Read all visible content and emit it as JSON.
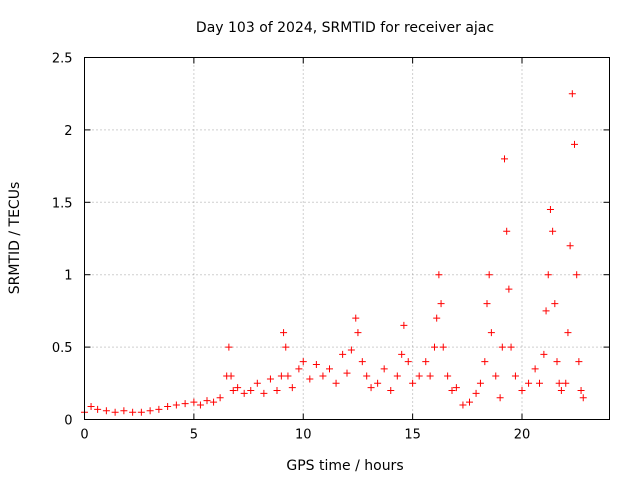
{
  "chart_data": {
    "type": "scatter",
    "title": "Day 103 of 2024, SRMTID for receiver ajac",
    "xlabel": "GPS time / hours",
    "ylabel": "SRMTID / TECUs",
    "xlim": [
      0,
      24
    ],
    "ylim": [
      0,
      2.5
    ],
    "xticks": [
      0,
      5,
      10,
      15,
      20
    ],
    "xtick_labels": [
      "0",
      "5",
      "10",
      "15",
      "20"
    ],
    "yticks": [
      0,
      0.5,
      1,
      1.5,
      2,
      2.5
    ],
    "ytick_labels": [
      "0",
      "0.5",
      "1",
      "1.5",
      "2",
      "2.5"
    ],
    "grid": true,
    "marker": "+",
    "series": [
      {
        "name": "SRMTID",
        "color": "#ff0000",
        "x": [
          0.0,
          0.3,
          0.6,
          1.0,
          1.4,
          1.8,
          2.2,
          2.6,
          3.0,
          3.4,
          3.8,
          4.2,
          4.6,
          5.0,
          5.3,
          5.6,
          5.9,
          6.2,
          6.5,
          6.6,
          6.7,
          6.8,
          7.0,
          7.3,
          7.6,
          7.9,
          8.2,
          8.5,
          8.8,
          9.0,
          9.1,
          9.2,
          9.3,
          9.5,
          9.8,
          10.0,
          10.3,
          10.6,
          10.9,
          11.2,
          11.5,
          11.8,
          12.0,
          12.2,
          12.4,
          12.5,
          12.7,
          12.9,
          13.1,
          13.4,
          13.7,
          14.0,
          14.3,
          14.5,
          14.6,
          14.8,
          15.0,
          15.3,
          15.6,
          15.8,
          16.0,
          16.1,
          16.2,
          16.3,
          16.4,
          16.6,
          16.8,
          17.0,
          17.3,
          17.6,
          17.9,
          18.1,
          18.3,
          18.4,
          18.5,
          18.6,
          18.8,
          19.0,
          19.1,
          19.2,
          19.3,
          19.4,
          19.5,
          19.7,
          20.0,
          20.3,
          20.6,
          20.8,
          21.0,
          21.1,
          21.2,
          21.3,
          21.4,
          21.5,
          21.6,
          21.7,
          21.8,
          22.0,
          22.1,
          22.2,
          22.3,
          22.4,
          22.5,
          22.6,
          22.7,
          22.8
        ],
        "y": [
          0.05,
          0.09,
          0.07,
          0.06,
          0.05,
          0.06,
          0.05,
          0.05,
          0.06,
          0.07,
          0.09,
          0.1,
          0.11,
          0.12,
          0.1,
          0.13,
          0.12,
          0.15,
          0.3,
          0.5,
          0.3,
          0.2,
          0.22,
          0.18,
          0.2,
          0.25,
          0.18,
          0.28,
          0.2,
          0.3,
          0.6,
          0.5,
          0.3,
          0.22,
          0.35,
          0.4,
          0.28,
          0.38,
          0.3,
          0.35,
          0.25,
          0.45,
          0.32,
          0.48,
          0.7,
          0.6,
          0.4,
          0.3,
          0.22,
          0.25,
          0.35,
          0.2,
          0.3,
          0.45,
          0.65,
          0.4,
          0.25,
          0.3,
          0.4,
          0.3,
          0.5,
          0.7,
          1.0,
          0.8,
          0.5,
          0.3,
          0.2,
          0.22,
          0.1,
          0.12,
          0.18,
          0.25,
          0.4,
          0.8,
          1.0,
          0.6,
          0.3,
          0.15,
          0.5,
          1.8,
          1.3,
          0.9,
          0.5,
          0.3,
          0.2,
          0.25,
          0.35,
          0.25,
          0.45,
          0.75,
          1.0,
          1.45,
          1.3,
          0.8,
          0.4,
          0.25,
          0.2,
          0.25,
          0.6,
          1.2,
          2.25,
          1.9,
          1.0,
          0.4,
          0.2,
          0.15
        ]
      }
    ]
  }
}
